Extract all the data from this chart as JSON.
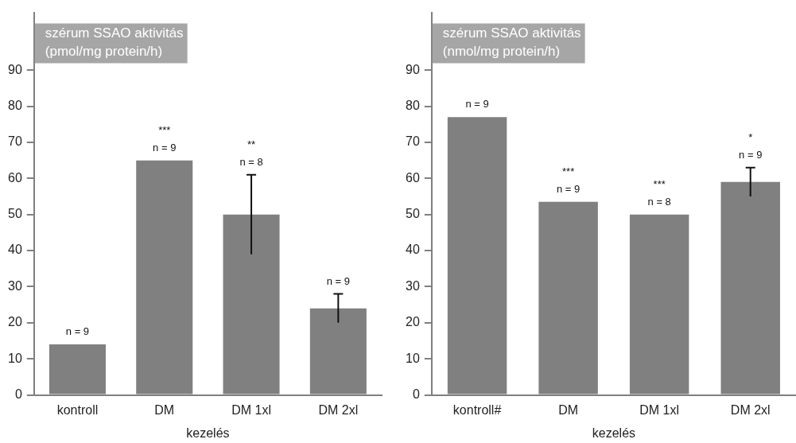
{
  "chart_data": [
    {
      "type": "bar",
      "title": "szérum SSAO aktivitás\n(pmol/mg protein/h)",
      "xlabel": "kezelés",
      "categories": [
        "kontroll",
        "DM",
        "DM 1xl",
        "DM 2xl"
      ],
      "values": [
        14,
        65,
        50,
        24
      ],
      "errors": [
        null,
        null,
        11,
        4
      ],
      "color": "#808080",
      "ylim": [
        0,
        106
      ],
      "yticks": [
        0,
        10,
        20,
        30,
        40,
        50,
        60,
        70,
        80,
        90
      ],
      "grid": false,
      "legend": false,
      "annotations": [
        {
          "text": "n = 9",
          "x": "kontroll",
          "y": 14
        },
        {
          "text": "***",
          "x": "DM",
          "y": 65
        },
        {
          "text": "n = 9",
          "x": "DM",
          "y": 65
        },
        {
          "text": "**",
          "x": "DM 1xl",
          "y": 61
        },
        {
          "text": "n = 8",
          "x": "DM 1xl",
          "y": 61
        },
        {
          "text": "n = 9",
          "x": "DM 2xl",
          "y": 28
        }
      ]
    },
    {
      "type": "bar",
      "title": "szérum SSAO aktivitás\n(nmol/mg protein/h)",
      "xlabel": "kezelés",
      "categories": [
        "kontroll#",
        "DM",
        "DM 1xl",
        "DM 2xl"
      ],
      "values": [
        77,
        53.5,
        50,
        59
      ],
      "errors": [
        null,
        null,
        null,
        4
      ],
      "color": "#808080",
      "ylim": [
        0,
        106
      ],
      "yticks": [
        0,
        10,
        20,
        30,
        40,
        50,
        60,
        70,
        80,
        90
      ],
      "grid": false,
      "legend": false,
      "annotations": [
        {
          "text": "n = 9",
          "x": "kontroll#",
          "y": 77
        },
        {
          "text": "***",
          "x": "DM",
          "y": 53.5
        },
        {
          "text": "n = 9",
          "x": "DM",
          "y": 53.5
        },
        {
          "text": "***",
          "x": "DM 1xl",
          "y": 50
        },
        {
          "text": "n = 8",
          "x": "DM 1xl",
          "y": 50
        },
        {
          "text": "*",
          "x": "DM 2xl",
          "y": 63
        },
        {
          "text": "n = 9",
          "x": "DM 2xl",
          "y": 63
        }
      ]
    }
  ]
}
